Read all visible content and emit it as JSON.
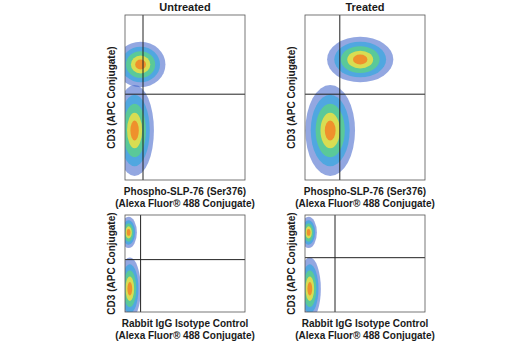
{
  "chart_data": [
    {
      "type": "density",
      "title": "Untreated",
      "x_label": [
        "Phospho-SLP-76 (Ser376)",
        "(Alexa Fluor® 488 Conjugate)"
      ],
      "y_label": "CD3 (APC Conjugate)",
      "xlim": [
        0,
        100
      ],
      "ylim": [
        0,
        100
      ],
      "tick_labels": false,
      "gates": {
        "x": 15,
        "y": 52
      },
      "clusters": [
        {
          "x": 13,
          "y": 70,
          "sx": 9,
          "sy": 6
        },
        {
          "x": 8,
          "y": 30,
          "sx": 7,
          "sy": 12
        }
      ]
    },
    {
      "type": "density",
      "title": "Treated",
      "x_label": [
        "Phospho-SLP-76 (Ser376)",
        "(Alexa Fluor® 488 Conjugate)"
      ],
      "y_label": "CD3 (APC Conjugate)",
      "xlim": [
        0,
        100
      ],
      "ylim": [
        0,
        100
      ],
      "tick_labels": false,
      "gates": {
        "x": 29,
        "y": 52
      },
      "clusters": [
        {
          "x": 46,
          "y": 73,
          "sx": 12,
          "sy": 6
        },
        {
          "x": 21,
          "y": 30,
          "sx": 9,
          "sy": 12
        }
      ]
    },
    {
      "type": "density",
      "x_label": [
        "Rabbit IgG Isotype Control",
        "(Alexa Fluor® 488 Conjugate)"
      ],
      "y_label": "CD3 (APC Conjugate)",
      "xlim": [
        0,
        100
      ],
      "ylim": [
        0,
        100
      ],
      "tick_labels": false,
      "gates": {
        "x": 13,
        "y": 54
      },
      "clusters": [
        {
          "x": 3,
          "y": 82,
          "sx": 3,
          "sy": 7
        },
        {
          "x": 4,
          "y": 24,
          "sx": 4,
          "sy": 14
        }
      ]
    },
    {
      "type": "density",
      "x_label": [
        "Rabbit IgG Isotype Control",
        "(Alexa Fluor® 488 Conjugate)"
      ],
      "y_label": "CD3 (APC Conjugate)",
      "xlim": [
        0,
        100
      ],
      "ylim": [
        0,
        100
      ],
      "tick_labels": false,
      "gates": {
        "x": 25,
        "y": 56
      },
      "clusters": [
        {
          "x": 3,
          "y": 82,
          "sx": 3,
          "sy": 7
        },
        {
          "x": 4,
          "y": 24,
          "sx": 4,
          "sy": 14
        }
      ]
    }
  ]
}
